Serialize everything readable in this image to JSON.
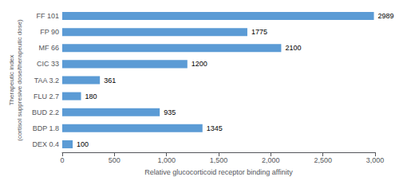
{
  "chart_data": {
    "type": "bar",
    "orientation": "horizontal",
    "categories": [
      "FF 101",
      "FP 90",
      "MF 66",
      "CIC 33",
      "TAA 3.2",
      "FLU 2.7",
      "BUD 2.2",
      "BDP 1.8",
      "DEX 0.4"
    ],
    "values": [
      2989,
      1775,
      2100,
      1200,
      361,
      180,
      935,
      1345,
      100
    ],
    "color": "#5b9bd5",
    "xlabel": "Relative glucocorticoid receptor binding affinity",
    "ylabel": "Therapeutic index\n(cortisol suppresive dose/therapeutic dose)",
    "xlim": [
      0,
      3000
    ],
    "xticks": [
      0,
      500,
      1000,
      1500,
      2000,
      2500,
      3000
    ],
    "data_labels": true,
    "grid": false
  }
}
